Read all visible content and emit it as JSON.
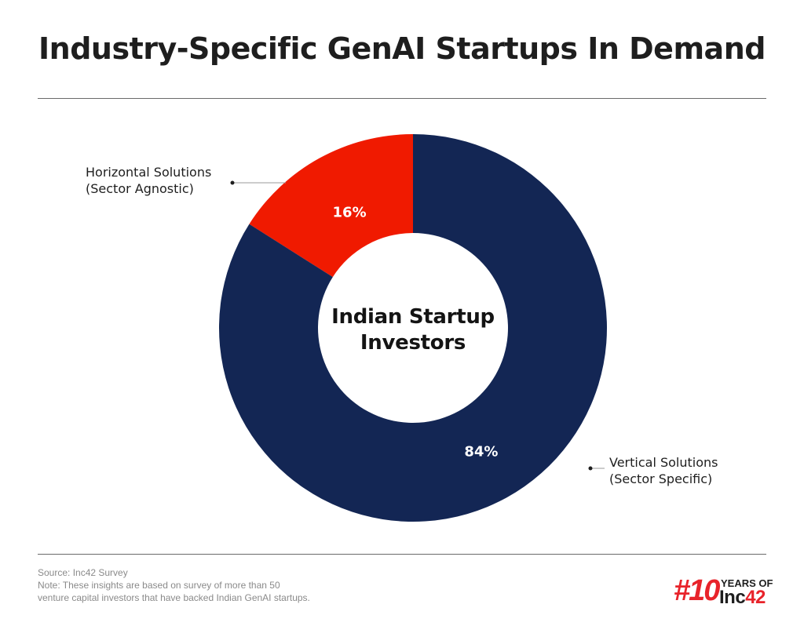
{
  "header": {
    "title": "Industry-Specific GenAI Startups In Demand"
  },
  "chart_data": {
    "type": "pie",
    "variant": "donut",
    "center_label": [
      "Indian Startup",
      "Investors"
    ],
    "slices": [
      {
        "label_lines": [
          "Horizontal Solutions",
          "(Sector Agnostic)"
        ],
        "value": 16,
        "value_label": "16%",
        "color": "#f01a00"
      },
      {
        "label_lines": [
          "Vertical Solutions",
          "(Sector Specific)"
        ],
        "value": 84,
        "value_label": "84%",
        "color": "#132654"
      }
    ],
    "legend": "callouts"
  },
  "footer": {
    "source": "Source: Inc42 Survey",
    "note_line1": "Note: These insights are based on survey of more than 50",
    "note_line2": "venture capital investors that have backed Indian GenAI startups."
  },
  "logo": {
    "mark": "#10",
    "years_text": "YEARS OF",
    "brand_text": "Inc",
    "brand_num": "42"
  }
}
